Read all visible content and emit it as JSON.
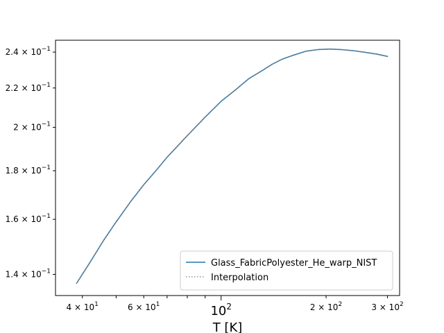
{
  "chart_data": {
    "type": "line",
    "title": "",
    "xlabel": "T [K]",
    "ylabel": "",
    "xscale": "log",
    "yscale": "log",
    "xlim": [
      33.5,
      325
    ],
    "ylim": [
      0.133,
      0.247
    ],
    "grid": false,
    "legend_position": "lower-right",
    "series": [
      {
        "name": "Glass_FabricPolyester_He_warp_NIST",
        "color": "#1f77b4",
        "style": "solid",
        "x": [
          38.5,
          42,
          46,
          50,
          55,
          60,
          65,
          70,
          80,
          90,
          100,
          110,
          120,
          130,
          140,
          150,
          160,
          175,
          190,
          205,
          220,
          240,
          260,
          280,
          300
        ],
        "y": [
          0.137,
          0.144,
          0.152,
          0.159,
          0.167,
          0.174,
          0.18,
          0.186,
          0.196,
          0.205,
          0.213,
          0.219,
          0.225,
          0.229,
          0.233,
          0.236,
          0.238,
          0.2405,
          0.2415,
          0.2418,
          0.2415,
          0.2408,
          0.2398,
          0.2388,
          0.2375
        ]
      },
      {
        "name": "Interpolation",
        "color": "#7f7f7f",
        "style": "dotted",
        "x": [
          38.5,
          42,
          46,
          50,
          55,
          60,
          65,
          70,
          80,
          90,
          100,
          110,
          120,
          130,
          140,
          150,
          160,
          175,
          190,
          205,
          220,
          240,
          260,
          280,
          300
        ],
        "y": [
          0.137,
          0.144,
          0.152,
          0.159,
          0.167,
          0.174,
          0.18,
          0.186,
          0.196,
          0.205,
          0.213,
          0.219,
          0.225,
          0.229,
          0.233,
          0.236,
          0.238,
          0.2405,
          0.2415,
          0.2418,
          0.2415,
          0.2408,
          0.2398,
          0.2388,
          0.2375
        ]
      }
    ],
    "x_ticks": [
      {
        "value": 40,
        "base": "4 × 10",
        "exp": "1",
        "major": false
      },
      {
        "value": 60,
        "base": "6 × 10",
        "exp": "1",
        "major": false
      },
      {
        "value": 100,
        "base": "10",
        "exp": "2",
        "major": true
      },
      {
        "value": 200,
        "base": "2 × 10",
        "exp": "2",
        "major": false
      },
      {
        "value": 300,
        "base": "3 × 10",
        "exp": "2",
        "major": false
      }
    ],
    "x_minor_unlabeled": [
      50,
      70,
      80,
      90
    ],
    "y_ticks": [
      {
        "value": 0.14,
        "base": "1.4 × 10",
        "exp": "−1"
      },
      {
        "value": 0.16,
        "base": "1.6 × 10",
        "exp": "−1"
      },
      {
        "value": 0.18,
        "base": "1.8 × 10",
        "exp": "−1"
      },
      {
        "value": 0.2,
        "base": "2 × 10",
        "exp": "−1"
      },
      {
        "value": 0.22,
        "base": "2.2 × 10",
        "exp": "−1"
      },
      {
        "value": 0.24,
        "base": "2.4 × 10",
        "exp": "−1"
      }
    ]
  }
}
